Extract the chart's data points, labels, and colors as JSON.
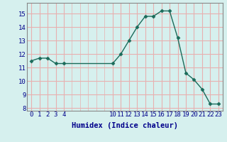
{
  "xlabel": "Humidex (Indice chaleur)",
  "ylabel": "",
  "x": [
    0,
    1,
    2,
    3,
    4,
    10,
    11,
    12,
    13,
    14,
    15,
    16,
    17,
    18,
    19,
    20,
    21,
    22,
    23
  ],
  "y": [
    11.5,
    11.7,
    11.7,
    11.3,
    11.3,
    11.3,
    12.0,
    13.0,
    14.0,
    14.8,
    14.8,
    15.2,
    15.2,
    13.2,
    10.6,
    10.1,
    9.4,
    8.3,
    8.3
  ],
  "line_color": "#1a6b5a",
  "marker": "D",
  "marker_size": 2.5,
  "bg_color": "#d6f0ee",
  "grid_color": "#e8b0b0",
  "ylim": [
    7.8,
    15.8
  ],
  "xlim": [
    -0.5,
    23.5
  ],
  "yticks": [
    8,
    9,
    10,
    11,
    12,
    13,
    14,
    15
  ],
  "xticks": [
    0,
    1,
    2,
    3,
    4,
    10,
    11,
    12,
    13,
    14,
    15,
    16,
    17,
    18,
    19,
    20,
    21,
    22,
    23
  ],
  "xtick_labels": [
    "0",
    "1",
    "2",
    "3",
    "4",
    "10",
    "11",
    "12",
    "13",
    "14",
    "15",
    "16",
    "17",
    "18",
    "19",
    "20",
    "21",
    "22",
    "23"
  ],
  "ytick_labels": [
    "8",
    "9",
    "10",
    "11",
    "12",
    "13",
    "14",
    "15"
  ],
  "tick_fontsize": 6.5,
  "label_fontsize": 7.5,
  "label_color": "#00008b"
}
